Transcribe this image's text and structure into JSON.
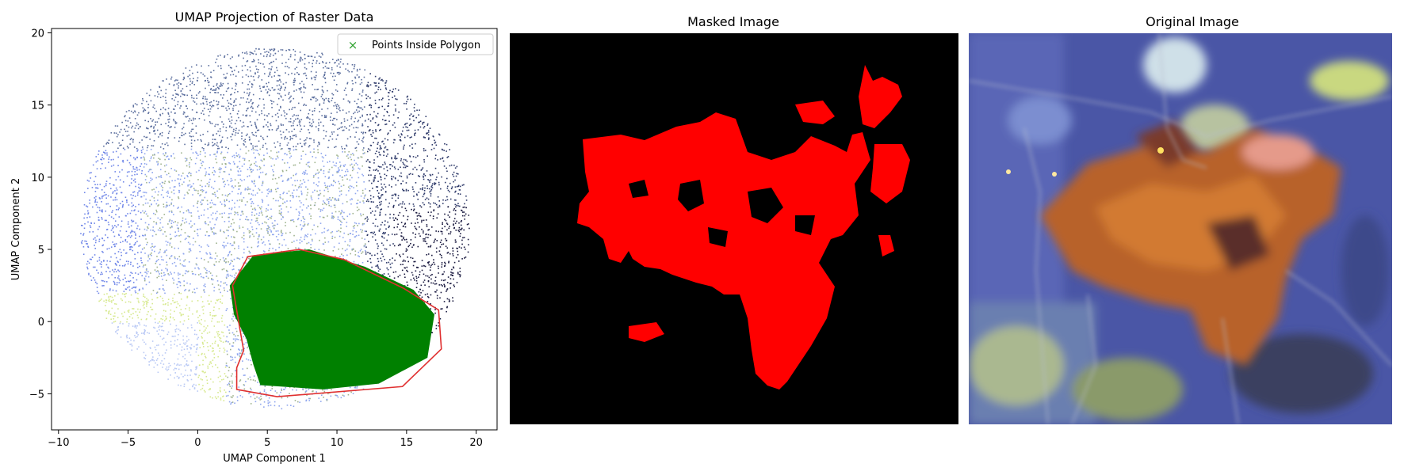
{
  "colors": {
    "scatter_palette": [
      "#6f86e8",
      "#8fa6ee",
      "#b9c9f5",
      "#9fb38f",
      "#5c6f9e",
      "#2e3a6a",
      "#1a1a40",
      "#3a2a3a",
      "#d7e98f",
      "#f2f5a8"
    ],
    "highlight": "#008000",
    "polygon": "#e03030",
    "mask_bg": "#000000",
    "mask_fg": "#ff0000"
  },
  "panels": {
    "umap": {
      "title": "UMAP Projection of Raster Data"
    },
    "masked": {
      "title": "Masked Image"
    },
    "original": {
      "title": "Original Image"
    }
  },
  "chart_data": [
    {
      "type": "scatter",
      "title": "UMAP Projection of Raster Data",
      "xlabel": "UMAP Component 1",
      "ylabel": "UMAP Component 2",
      "xlim": [
        -10.5,
        21.5
      ],
      "ylim": [
        -7.5,
        20.3
      ],
      "xticks": [
        -10,
        -5,
        0,
        5,
        10,
        15,
        20
      ],
      "yticks": [
        -5,
        0,
        5,
        10,
        15,
        20
      ],
      "grid": false,
      "legend": {
        "placement": "top-right",
        "entries": [
          {
            "label": "Points Inside Polygon",
            "marker": "x",
            "color": "#2ca02c"
          }
        ]
      },
      "series": [
        {
          "name": "Points Inside Polygon",
          "color": "#008000",
          "region": [
            [
              2.3,
              2.5
            ],
            [
              4,
              4.6
            ],
            [
              8,
              5
            ],
            [
              12,
              3.8
            ],
            [
              15.5,
              2.2
            ],
            [
              17,
              0.5
            ],
            [
              16.5,
              -2.5
            ],
            [
              13,
              -4.3
            ],
            [
              9,
              -4.7
            ],
            [
              4.5,
              -4.4
            ],
            [
              4,
              -3
            ],
            [
              3.5,
              -1.2
            ],
            [
              2.6,
              0.5
            ]
          ]
        }
      ],
      "polygon": [
        [
          2.5,
          2.5
        ],
        [
          3.6,
          4.5
        ],
        [
          7.3,
          5
        ],
        [
          10.5,
          4.3
        ],
        [
          14.8,
          2.3
        ],
        [
          17.3,
          0.8
        ],
        [
          17.5,
          -1.9
        ],
        [
          14.7,
          -4.5
        ],
        [
          5.7,
          -5.2
        ],
        [
          2.8,
          -4.7
        ],
        [
          2.8,
          -3.2
        ],
        [
          3.3,
          -2
        ],
        [
          2.9,
          0.2
        ]
      ]
    }
  ]
}
